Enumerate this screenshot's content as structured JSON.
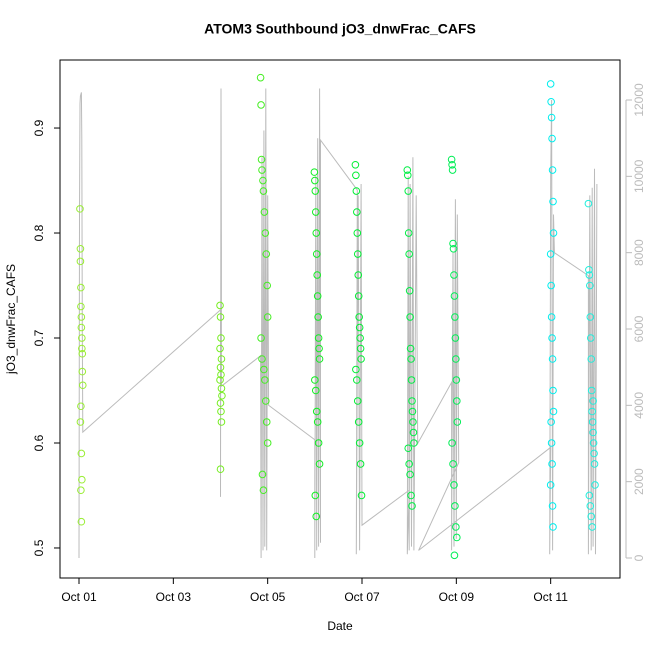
{
  "chart_data": {
    "type": "scatter",
    "title": "ATOM3 Southbound jO3_dnwFrac_CAFS",
    "xlabel": "Date",
    "ylabel": "jO3_dnwFrac_CAFS",
    "xlim": [
      0.597,
      12.47
    ],
    "ylim": [
      0.4714,
      0.9648
    ],
    "y2lim": [
      -524,
      13048
    ],
    "xticks": [
      {
        "value": 1,
        "label": "Oct 01"
      },
      {
        "value": 3,
        "label": "Oct 03"
      },
      {
        "value": 5,
        "label": "Oct 05"
      },
      {
        "value": 7,
        "label": "Oct 07"
      },
      {
        "value": 9,
        "label": "Oct 09"
      },
      {
        "value": 11,
        "label": "Oct 11"
      }
    ],
    "yticks": [
      0.5,
      0.6,
      0.7,
      0.8,
      0.9
    ],
    "y2ticks": [
      0,
      2000,
      4000,
      6000,
      8000,
      10000,
      12000
    ],
    "y2color": "#bbbbbb",
    "series": [
      {
        "color": "#bbbbbb",
        "type": "line",
        "axis": "y2",
        "x": [
          1.0,
          1.01,
          1.02,
          1.03,
          1.05,
          1.06,
          1.07,
          1.08,
          4.0,
          4.0,
          4.01,
          4.02,
          4.02,
          4.85,
          4.86,
          4.88,
          4.9,
          4.92,
          4.94,
          4.96,
          4.98,
          5.0,
          5.02,
          6.0,
          6.0,
          6.02,
          6.04,
          6.06,
          6.08,
          6.1,
          6.12,
          6.12,
          6.9,
          6.88,
          6.92,
          6.95,
          6.98,
          7.0,
          8.0,
          7.96,
          7.98,
          8.0,
          8.02,
          8.05,
          8.08,
          8.1,
          8.15,
          8.18,
          8.9,
          8.9,
          8.93,
          8.95,
          8.98,
          9.0,
          9.02,
          9.05,
          8.2,
          11.0,
          10.98,
          11.0,
          11.02,
          11.04,
          11.06,
          11.08,
          11.8,
          11.8,
          11.83,
          11.86,
          11.88,
          11.9,
          11.93,
          11.95,
          11.98
        ],
        "values": [
          0,
          9000,
          11900,
          12100,
          12200,
          11000,
          6000,
          3300,
          6500,
          1600,
          12300,
          8000,
          4500,
          5300,
          0,
          10500,
          200,
          11200,
          300,
          12300,
          200,
          9500,
          4000,
          3100,
          0,
          10000,
          200,
          11000,
          300,
          12300,
          400,
          10950,
          9640,
          100,
          9500,
          200,
          9800,
          860,
          1780,
          100,
          10000,
          200,
          9800,
          300,
          10500,
          200,
          9500,
          3000,
          4600,
          200,
          8000,
          300,
          9400,
          500,
          9000,
          2500,
          200,
          2900,
          100,
          10000,
          12000,
          200,
          9000,
          8000,
          7400,
          100,
          9500,
          200,
          9700,
          300,
          10200,
          100,
          9800
        ]
      },
      {
        "color": "#99ee33",
        "x": [
          1.02,
          1.03,
          1.03,
          1.04,
          1.04,
          1.05,
          1.05,
          1.06,
          1.06,
          1.07,
          1.07,
          1.08,
          1.04,
          1.03,
          1.05,
          1.06,
          1.04,
          1.05
        ],
        "values": [
          0.823,
          0.785,
          0.773,
          0.748,
          0.73,
          0.72,
          0.71,
          0.7,
          0.69,
          0.685,
          0.668,
          0.655,
          0.635,
          0.62,
          0.59,
          0.565,
          0.555,
          0.525
        ]
      },
      {
        "color": "#77ee22",
        "x": [
          3.99,
          4.0,
          4.01,
          4.02,
          4.0,
          4.01,
          3.99,
          4.02,
          4.03,
          4.0,
          4.01,
          4.02,
          4.0,
          3.99
        ],
        "values": [
          0.731,
          0.72,
          0.7,
          0.68,
          0.672,
          0.665,
          0.66,
          0.652,
          0.645,
          0.638,
          0.63,
          0.62,
          0.575,
          0.69
        ]
      },
      {
        "color": "#44ee22",
        "x": [
          4.85,
          4.86,
          4.87,
          4.88,
          4.9,
          4.91,
          4.93,
          4.95,
          4.97,
          4.99,
          5.0,
          4.86,
          4.88,
          4.92,
          4.94,
          4.96,
          4.98,
          5.0,
          4.89,
          4.91
        ],
        "values": [
          0.948,
          0.922,
          0.87,
          0.86,
          0.85,
          0.84,
          0.82,
          0.8,
          0.78,
          0.75,
          0.72,
          0.7,
          0.68,
          0.67,
          0.66,
          0.64,
          0.62,
          0.6,
          0.57,
          0.555
        ]
      },
      {
        "color": "#11ee22",
        "x": [
          5.99,
          6.0,
          6.01,
          6.02,
          6.03,
          6.04,
          6.05,
          6.06,
          6.07,
          6.08,
          6.09,
          6.1,
          6.0,
          6.02,
          6.04,
          6.06,
          6.08,
          6.1,
          6.01,
          6.03
        ],
        "values": [
          0.858,
          0.85,
          0.84,
          0.82,
          0.8,
          0.78,
          0.76,
          0.74,
          0.72,
          0.7,
          0.69,
          0.68,
          0.66,
          0.65,
          0.63,
          0.62,
          0.6,
          0.58,
          0.55,
          0.53
        ]
      },
      {
        "color": "#00ee33",
        "x": [
          6.86,
          6.87,
          6.88,
          6.89,
          6.9,
          6.91,
          6.92,
          6.93,
          6.94,
          6.95,
          6.96,
          6.97,
          6.98,
          6.87,
          6.89,
          6.91,
          6.93,
          6.95,
          6.97,
          6.99
        ],
        "values": [
          0.865,
          0.855,
          0.84,
          0.82,
          0.8,
          0.78,
          0.76,
          0.74,
          0.72,
          0.71,
          0.7,
          0.69,
          0.68,
          0.67,
          0.66,
          0.64,
          0.62,
          0.6,
          0.58,
          0.55
        ]
      },
      {
        "color": "#00ee44",
        "x": [
          7.96,
          7.97,
          7.98,
          7.99,
          8.0,
          8.01,
          8.02,
          8.03,
          8.04,
          8.05,
          8.06,
          8.07,
          8.08,
          8.09,
          8.1,
          7.98,
          8.0,
          8.02,
          8.04,
          8.06
        ],
        "values": [
          0.86,
          0.855,
          0.84,
          0.8,
          0.78,
          0.745,
          0.72,
          0.69,
          0.68,
          0.66,
          0.64,
          0.63,
          0.62,
          0.61,
          0.6,
          0.595,
          0.58,
          0.57,
          0.55,
          0.54
        ]
      },
      {
        "color": "#00ee55",
        "x": [
          8.9,
          8.91,
          8.92,
          8.93,
          8.94,
          8.95,
          8.96,
          8.97,
          8.98,
          8.99,
          9.0,
          9.01,
          9.02,
          8.91,
          8.93,
          8.95,
          8.97,
          8.99,
          9.01,
          8.96
        ],
        "values": [
          0.87,
          0.865,
          0.86,
          0.79,
          0.785,
          0.76,
          0.74,
          0.72,
          0.7,
          0.68,
          0.66,
          0.64,
          0.62,
          0.6,
          0.58,
          0.56,
          0.54,
          0.52,
          0.51,
          0.493
        ]
      },
      {
        "color": "#00eeee",
        "x": [
          11.0,
          11.01,
          11.02,
          11.03,
          11.04,
          11.05,
          11.06,
          11.0,
          11.01,
          11.02,
          11.03,
          11.04,
          11.05,
          11.06,
          11.02,
          11.03,
          11.0,
          11.04,
          11.05,
          11.01
        ],
        "values": [
          0.942,
          0.925,
          0.91,
          0.89,
          0.86,
          0.83,
          0.8,
          0.78,
          0.75,
          0.72,
          0.7,
          0.68,
          0.65,
          0.63,
          0.6,
          0.58,
          0.56,
          0.54,
          0.52,
          0.62
        ]
      },
      {
        "color": "#22eedd",
        "x": [
          11.8,
          11.81,
          11.82,
          11.83,
          11.84,
          11.85,
          11.86,
          11.87,
          11.88,
          11.89,
          11.9,
          11.91,
          11.92,
          11.93,
          11.94,
          11.82,
          11.84,
          11.86,
          11.88,
          11.9
        ],
        "values": [
          0.828,
          0.765,
          0.76,
          0.75,
          0.72,
          0.7,
          0.68,
          0.65,
          0.63,
          0.62,
          0.61,
          0.6,
          0.59,
          0.58,
          0.56,
          0.55,
          0.54,
          0.53,
          0.52,
          0.64
        ]
      }
    ]
  }
}
